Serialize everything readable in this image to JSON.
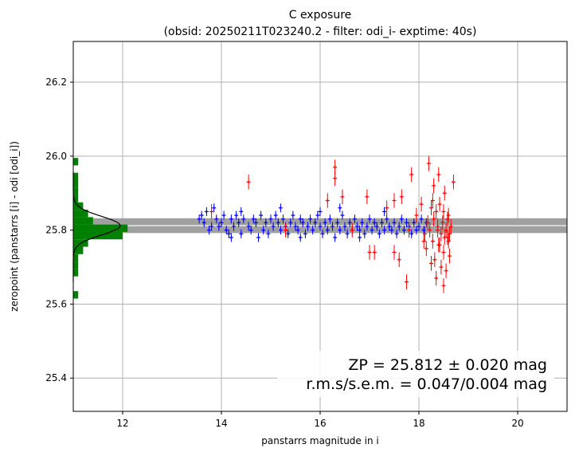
{
  "chart_data": {
    "type": "scatter",
    "title_line1": "C exposure",
    "title_line2": "(obsid: 20250211T023240.2 - filter: odi_i- exptime: 40s)",
    "xlabel": "panstarrs magnitude in i",
    "ylabel": "zeropoint (panstarrs [i] - odi [odi_i])",
    "xlim": [
      11.0,
      21.0
    ],
    "ylim": [
      25.31,
      26.31
    ],
    "xticks": [
      12,
      14,
      16,
      18,
      20
    ],
    "yticks": [
      25.4,
      25.6,
      25.8,
      26.0,
      26.2
    ],
    "xtick_labels": [
      "12",
      "14",
      "16",
      "18",
      "20"
    ],
    "ytick_labels": [
      "25.4",
      "25.6",
      "25.8",
      "26.0",
      "26.2"
    ],
    "grid": true,
    "zeropoint": 25.812,
    "band_halfwidth": 0.02,
    "annotation_line1": "ZP = 25.812 ± 0.020 mag",
    "annotation_line2": "r.m.s/s.e.m. = 0.047/0.004 mag",
    "colors": {
      "used": "#0000ff",
      "rejected": "#ff0000",
      "histogram": "#008000",
      "band": "#a0a0a0",
      "gaussian": "#000000",
      "grid": "#b0b0b0"
    },
    "series": [
      {
        "points": [
          [
            13.55,
            25.83
          ],
          [
            13.6,
            25.84
          ],
          [
            13.65,
            25.82
          ],
          [
            13.7,
            25.85
          ],
          [
            13.8,
            25.81
          ],
          [
            13.85,
            25.86
          ],
          [
            13.9,
            25.83
          ],
          [
            13.95,
            25.81
          ],
          [
            14.0,
            25.82
          ],
          [
            14.05,
            25.84
          ],
          [
            14.1,
            25.8
          ],
          [
            14.15,
            25.79
          ],
          [
            14.2,
            25.83
          ],
          [
            14.25,
            25.81
          ],
          [
            14.3,
            25.84
          ],
          [
            14.35,
            25.82
          ],
          [
            14.4,
            25.79
          ],
          [
            14.45,
            25.83
          ],
          [
            14.55,
            25.81
          ],
          [
            14.6,
            25.8
          ],
          [
            14.65,
            25.83
          ],
          [
            14.7,
            25.82
          ],
          [
            14.8,
            25.84
          ],
          [
            14.85,
            25.8
          ],
          [
            14.9,
            25.82
          ],
          [
            14.95,
            25.79
          ],
          [
            15.0,
            25.83
          ],
          [
            15.05,
            25.81
          ],
          [
            15.1,
            25.84
          ],
          [
            15.15,
            25.82
          ],
          [
            15.2,
            25.8
          ],
          [
            15.25,
            25.83
          ],
          [
            15.3,
            25.81
          ],
          [
            15.35,
            25.79
          ],
          [
            15.4,
            25.82
          ],
          [
            15.45,
            25.84
          ],
          [
            15.5,
            25.81
          ],
          [
            15.55,
            25.8
          ],
          [
            15.6,
            25.83
          ],
          [
            15.65,
            25.82
          ],
          [
            15.7,
            25.79
          ],
          [
            15.75,
            25.81
          ],
          [
            15.8,
            25.83
          ],
          [
            15.85,
            25.8
          ],
          [
            15.9,
            25.82
          ],
          [
            15.95,
            25.84
          ],
          [
            16.0,
            25.81
          ],
          [
            16.05,
            25.79
          ],
          [
            16.1,
            25.82
          ],
          [
            16.15,
            25.8
          ],
          [
            16.2,
            25.83
          ],
          [
            16.25,
            25.81
          ],
          [
            16.3,
            25.78
          ],
          [
            16.35,
            25.82
          ],
          [
            16.4,
            25.8
          ],
          [
            16.45,
            25.84
          ],
          [
            16.5,
            25.81
          ],
          [
            16.55,
            25.79
          ],
          [
            16.6,
            25.82
          ],
          [
            16.65,
            25.8
          ],
          [
            16.7,
            25.83
          ],
          [
            16.75,
            25.81
          ],
          [
            16.8,
            25.8
          ],
          [
            16.85,
            25.82
          ],
          [
            16.9,
            25.79
          ],
          [
            16.95,
            25.81
          ],
          [
            17.0,
            25.83
          ],
          [
            17.05,
            25.8
          ],
          [
            17.1,
            25.82
          ],
          [
            17.15,
            25.81
          ],
          [
            17.2,
            25.79
          ],
          [
            17.25,
            25.82
          ],
          [
            17.3,
            25.8
          ],
          [
            17.35,
            25.83
          ],
          [
            17.4,
            25.81
          ],
          [
            17.45,
            25.8
          ],
          [
            17.5,
            25.82
          ],
          [
            17.55,
            25.79
          ],
          [
            17.6,
            25.81
          ],
          [
            17.65,
            25.83
          ],
          [
            17.7,
            25.8
          ],
          [
            17.75,
            25.82
          ],
          [
            17.8,
            25.81
          ],
          [
            17.85,
            25.79
          ],
          [
            17.9,
            25.82
          ],
          [
            17.95,
            25.8
          ],
          [
            18.0,
            25.81
          ],
          [
            18.05,
            25.83
          ],
          [
            18.1,
            25.8
          ],
          [
            18.15,
            25.82
          ],
          [
            14.4,
            25.85
          ],
          [
            14.2,
            25.78
          ],
          [
            15.2,
            25.86
          ],
          [
            16.0,
            25.85
          ],
          [
            16.8,
            25.78
          ],
          [
            15.6,
            25.78
          ],
          [
            17.3,
            25.85
          ],
          [
            13.75,
            25.8
          ],
          [
            14.75,
            25.78
          ],
          [
            16.4,
            25.86
          ]
        ],
        "yerr": 0.012
      },
      {
        "points": [
          [
            13.8,
            25.85
          ],
          [
            14.55,
            25.93
          ],
          [
            15.3,
            25.8
          ],
          [
            16.15,
            25.88
          ],
          [
            16.3,
            25.97
          ],
          [
            16.3,
            25.94
          ],
          [
            16.45,
            25.89
          ],
          [
            16.65,
            25.8
          ],
          [
            16.95,
            25.89
          ],
          [
            17.0,
            25.74
          ],
          [
            17.1,
            25.74
          ],
          [
            17.35,
            25.86
          ],
          [
            17.5,
            25.88
          ],
          [
            17.5,
            25.74
          ],
          [
            17.65,
            25.89
          ],
          [
            17.6,
            25.72
          ],
          [
            17.8,
            25.8
          ],
          [
            17.75,
            25.66
          ],
          [
            17.85,
            25.95
          ],
          [
            17.95,
            25.84
          ],
          [
            18.05,
            25.87
          ],
          [
            18.1,
            25.77
          ],
          [
            18.15,
            25.75
          ],
          [
            18.2,
            25.98
          ],
          [
            18.22,
            25.8
          ],
          [
            18.25,
            25.86
          ],
          [
            18.28,
            25.77
          ],
          [
            18.3,
            25.83
          ],
          [
            18.32,
            25.72
          ],
          [
            18.35,
            25.85
          ],
          [
            18.38,
            25.8
          ],
          [
            18.4,
            25.76
          ],
          [
            18.42,
            25.87
          ],
          [
            18.45,
            25.79
          ],
          [
            18.48,
            25.82
          ],
          [
            18.5,
            25.74
          ],
          [
            18.52,
            25.9
          ],
          [
            18.55,
            25.8
          ],
          [
            18.58,
            25.78
          ],
          [
            18.6,
            25.84
          ],
          [
            18.62,
            25.73
          ],
          [
            18.35,
            25.67
          ],
          [
            18.45,
            25.7
          ],
          [
            18.5,
            25.65
          ],
          [
            18.55,
            25.69
          ],
          [
            18.4,
            25.95
          ],
          [
            18.7,
            25.93
          ],
          [
            18.3,
            25.92
          ],
          [
            18.5,
            25.85
          ],
          [
            18.6,
            25.77
          ],
          [
            18.65,
            25.81
          ],
          [
            18.28,
            25.88
          ],
          [
            18.18,
            25.82
          ],
          [
            18.12,
            25.79
          ],
          [
            18.25,
            25.71
          ],
          [
            18.42,
            25.76
          ],
          [
            18.58,
            25.83
          ],
          [
            18.52,
            25.78
          ],
          [
            18.38,
            25.81
          ],
          [
            18.62,
            25.79
          ]
        ],
        "yerr": 0.02
      }
    ],
    "histogram": {
      "bin_edges": [
        25.615,
        25.635,
        25.655,
        25.675,
        25.695,
        25.715,
        25.735,
        25.755,
        25.775,
        25.795,
        25.815,
        25.835,
        25.855,
        25.875,
        25.895,
        25.915,
        25.935,
        25.955,
        25.975,
        25.995
      ],
      "counts": [
        1,
        0,
        0,
        1,
        1,
        1,
        2,
        3,
        10,
        11,
        4,
        3,
        2,
        1,
        1,
        1,
        1,
        0,
        1
      ],
      "max_width_mag": 1.1
    }
  }
}
